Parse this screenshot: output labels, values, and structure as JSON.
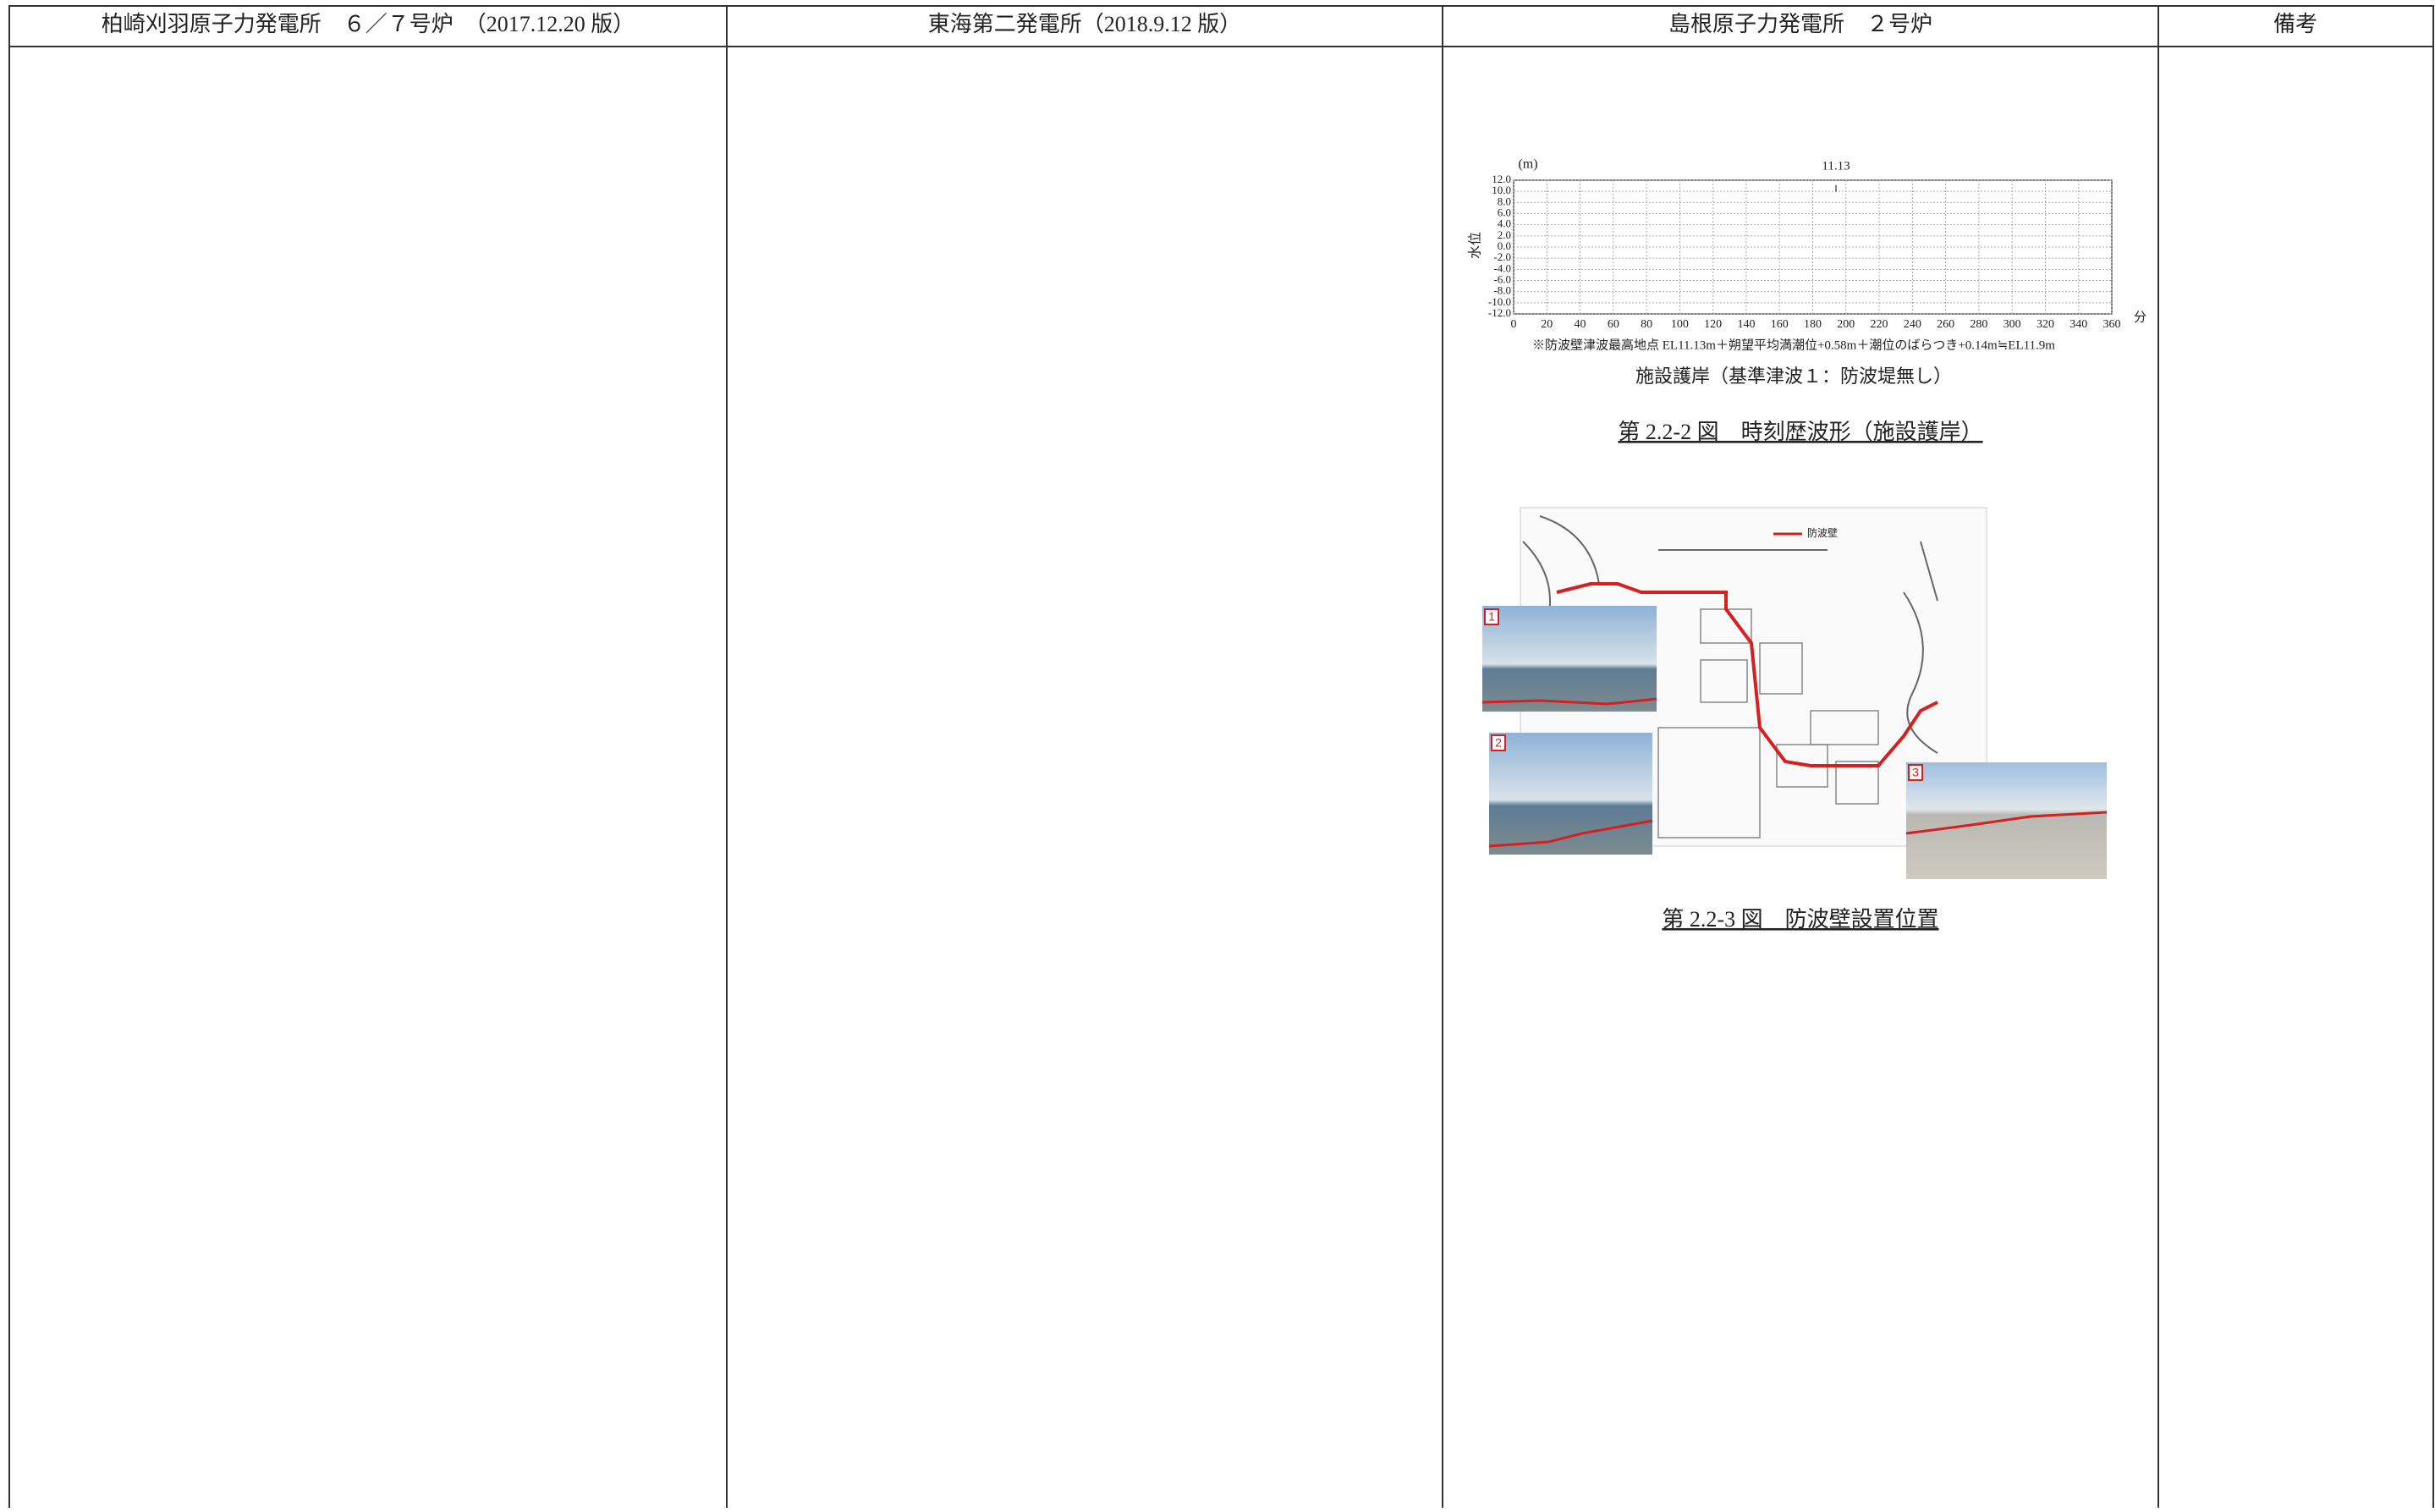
{
  "table": {
    "headers": [
      "柏崎刈羽原子力発電所　６／７号炉　（2017.12.20 版）",
      "東海第二発電所（2018.9.12 版）",
      "島根原子力発電所　２号炉",
      "備考"
    ]
  },
  "figure_1": {
    "y_unit": "(m)",
    "y_label": "水位",
    "x_unit": "分",
    "ylim": [
      -12,
      12
    ],
    "yticks": [
      {
        "value": 12,
        "label": "12.0"
      },
      {
        "value": 10,
        "label": "10.0"
      },
      {
        "value": 8,
        "label": "8.0"
      },
      {
        "value": 6,
        "label": "6.0"
      },
      {
        "value": 4,
        "label": "4.0"
      },
      {
        "value": 2,
        "label": "2.0"
      },
      {
        "value": 0,
        "label": "0.0"
      },
      {
        "value": -2,
        "label": "-2.0"
      },
      {
        "value": -4,
        "label": "-4.0"
      },
      {
        "value": -6,
        "label": "-6.0"
      },
      {
        "value": -8,
        "label": "-8.0"
      },
      {
        "value": -10,
        "label": "-10.0"
      },
      {
        "value": -12,
        "label": "-12.0"
      }
    ],
    "xlim": [
      0,
      360
    ],
    "xticks": [
      0,
      20,
      40,
      60,
      80,
      100,
      120,
      140,
      160,
      180,
      200,
      220,
      240,
      260,
      280,
      300,
      320,
      340,
      360
    ],
    "peak": {
      "x": 194,
      "value": 11.13
    },
    "note": "※防波壁津波最高地点 EL11.13m＋朔望平均満潮位+0.58m＋潮位のばらつき+0.14m≒EL11.9m",
    "subtitle": "施設護岸（基準津波１：防波堤無し）",
    "caption": "第 2.2-2 図　時刻歴波形（施設護岸）"
  },
  "figure_2": {
    "legend": "防波壁",
    "photo_labels": [
      "1",
      "2",
      "3"
    ],
    "caption": "第 2.2-3 図　防波壁設置位置"
  }
}
